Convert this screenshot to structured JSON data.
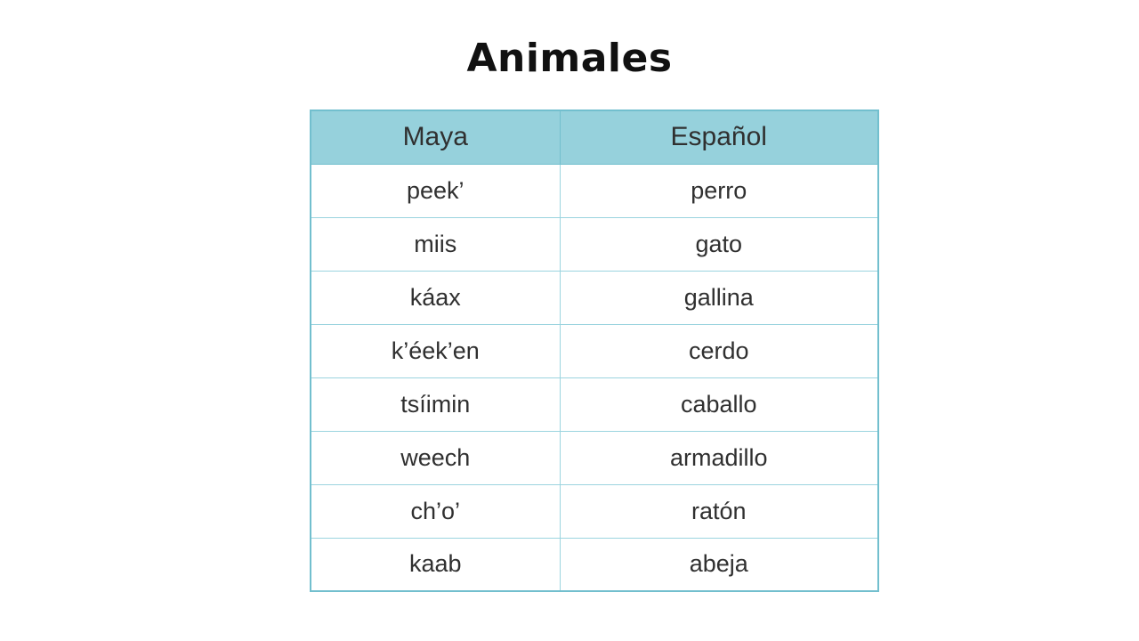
{
  "page": {
    "title": "Animales"
  },
  "table": {
    "headers": [
      "Maya",
      "Español"
    ],
    "rows": [
      [
        "peek’",
        "perro"
      ],
      [
        "miis",
        "gato"
      ],
      [
        "káax",
        "gallina"
      ],
      [
        "k’éek’en",
        "cerdo"
      ],
      [
        "tsíimin",
        "caballo"
      ],
      [
        "weech",
        "armadillo"
      ],
      [
        "ch’o’",
        "ratón"
      ],
      [
        "kaab",
        "abeja"
      ]
    ]
  },
  "colors": {
    "header_bg": "#96d1dc",
    "border_inner": "#9bd4df",
    "border_outer": "#72bfce",
    "title_text": "#111111",
    "cell_text": "#303030",
    "page_bg": "#ffffff"
  }
}
